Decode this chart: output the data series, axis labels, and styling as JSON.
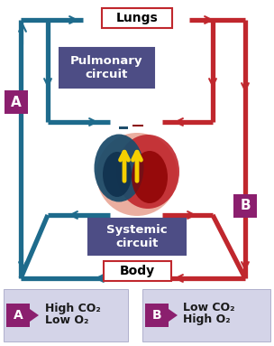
{
  "bg_color": "#ffffff",
  "blue": "#1e6b8c",
  "red": "#c0272d",
  "purple_box": "#4d4d85",
  "legend_purple": "#8b1f6e",
  "lungs_label": "Lungs",
  "pulmonary_label": "Pulmonary\ncircuit",
  "systemic_label": "Systemic\ncircuit",
  "body_label": "Body",
  "legend_a_label1": "Low O₂",
  "legend_a_label2": "High CO₂",
  "legend_b_label1": "High O₂",
  "legend_b_label2": "Low CO₂",
  "figsize": [
    3.04,
    3.83
  ],
  "dpi": 100
}
